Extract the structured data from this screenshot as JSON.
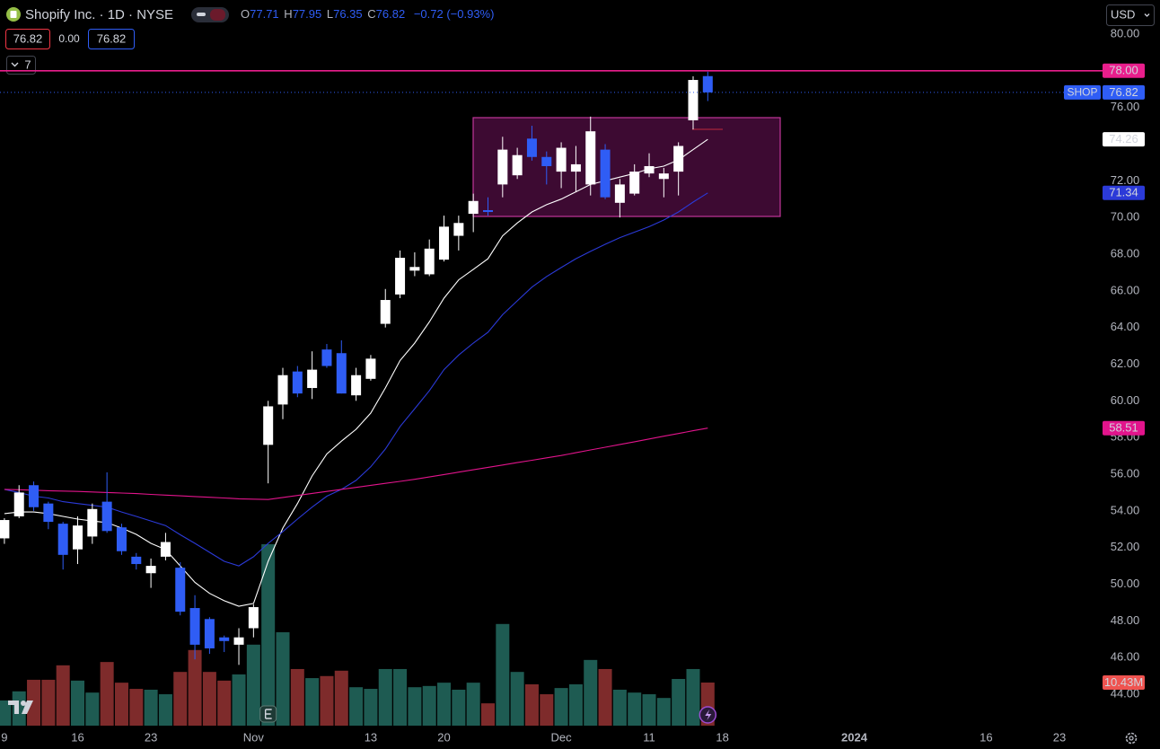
{
  "ui": {
    "title": "Shopify Inc. · 1D · NYSE",
    "ohlc_keys": [
      "O",
      "H",
      "L",
      "C"
    ],
    "change": "−0.72 (−0.93%)",
    "bid": "76.82",
    "spread": "0.00",
    "ask": "76.82",
    "indicator_count": "7",
    "currency": "USD"
  },
  "chart_data": {
    "type": "candlestick",
    "grid": false,
    "candles": {
      "name": "SHOP",
      "up_color": "#ffffff",
      "down_color": "#2f5df5",
      "open": [
        52.5,
        53.7,
        55.4,
        54.4,
        53.3,
        51.9,
        52.6,
        54.5,
        53.1,
        51.5,
        50.6,
        51.5,
        50.9,
        48.7,
        48.1,
        47.1,
        46.7,
        47.6,
        57.6,
        59.8,
        61.6,
        60.7,
        62.8,
        62.6,
        60.3,
        61.2,
        64.2,
        65.8,
        67.1,
        66.9,
        67.7,
        69.0,
        70.2,
        70.4,
        71.8,
        72.3,
        74.3,
        73.3,
        72.5,
        72.5,
        71.8,
        73.7,
        70.8,
        71.3,
        72.4,
        72.1,
        72.5,
        75.3,
        77.71
      ],
      "high": [
        53.6,
        55.4,
        55.6,
        54.5,
        53.4,
        53.7,
        54.4,
        56.1,
        53.3,
        51.7,
        51.4,
        52.8,
        51.2,
        49.4,
        48.2,
        47.2,
        47.6,
        48.9,
        60.0,
        61.8,
        61.9,
        62.7,
        63.1,
        63.3,
        61.8,
        62.5,
        66.1,
        68.2,
        68.1,
        68.8,
        70.1,
        70.1,
        71.3,
        71.1,
        74.4,
        73.8,
        75.0,
        73.6,
        74.1,
        73.9,
        75.5,
        74.0,
        72.1,
        72.9,
        73.5,
        72.7,
        74.1,
        77.7,
        77.95
      ],
      "low": [
        52.2,
        53.6,
        54.0,
        53.0,
        50.8,
        51.1,
        52.2,
        52.8,
        51.6,
        50.8,
        49.8,
        51.3,
        48.3,
        45.9,
        46.2,
        46.3,
        45.6,
        47.1,
        55.5,
        59.0,
        60.2,
        60.1,
        61.8,
        60.4,
        60.0,
        61.1,
        64.0,
        65.6,
        66.8,
        66.8,
        67.6,
        68.2,
        69.2,
        70.1,
        71.1,
        72.1,
        73.1,
        71.8,
        71.6,
        71.4,
        71.2,
        71.0,
        70.0,
        71.2,
        72.2,
        71.1,
        71.2,
        74.8,
        76.35
      ],
      "close": [
        53.5,
        55.0,
        54.2,
        53.4,
        51.6,
        53.2,
        54.1,
        52.9,
        51.8,
        51.1,
        51.0,
        52.3,
        48.5,
        46.7,
        46.5,
        46.9,
        47.1,
        48.75,
        59.7,
        61.4,
        60.4,
        61.7,
        61.9,
        60.4,
        61.4,
        62.3,
        65.5,
        67.8,
        67.3,
        68.3,
        69.5,
        69.7,
        70.9,
        70.3,
        73.7,
        73.4,
        73.3,
        72.8,
        73.8,
        72.9,
        74.7,
        71.1,
        71.8,
        72.5,
        72.8,
        72.4,
        73.9,
        77.5,
        76.82
      ]
    },
    "lines": [
      {
        "color": "#ffffff",
        "values": [
          53.85,
          53.94,
          53.94,
          53.85,
          53.7,
          53.55,
          53.45,
          53.36,
          53.06,
          52.72,
          52.23,
          51.89,
          51.0,
          50.1,
          49.5,
          49.1,
          48.8,
          48.95,
          51.25,
          53.06,
          54.4,
          55.9,
          57.1,
          57.8,
          58.45,
          59.33,
          60.7,
          62.2,
          63.15,
          64.3,
          65.6,
          66.6,
          67.17,
          67.75,
          69.0,
          69.7,
          70.3,
          70.7,
          71.0,
          71.4,
          71.8,
          72.0,
          72.2,
          72.4,
          72.65,
          72.8,
          73.14,
          73.7,
          74.26
        ]
      },
      {
        "color": "#2b3ad8",
        "values": [
          55.17,
          55.0,
          54.8,
          54.7,
          54.5,
          54.4,
          54.3,
          54.2,
          53.94,
          53.7,
          53.45,
          53.2,
          52.7,
          52.23,
          51.74,
          51.25,
          51.0,
          51.5,
          52.23,
          52.87,
          53.55,
          54.2,
          54.8,
          55.17,
          55.66,
          56.4,
          57.37,
          58.6,
          59.57,
          60.55,
          61.7,
          62.5,
          63.15,
          63.74,
          64.7,
          65.45,
          66.2,
          66.78,
          67.27,
          67.75,
          68.15,
          68.54,
          68.9,
          69.2,
          69.5,
          69.86,
          70.3,
          70.84,
          71.34
        ]
      },
      {
        "color": "#e2148c",
        "values": [
          55.17,
          55.15,
          55.13,
          55.1,
          55.08,
          55.06,
          55.03,
          55.0,
          54.97,
          54.94,
          54.9,
          54.86,
          54.82,
          54.78,
          54.74,
          54.7,
          54.66,
          54.64,
          54.62,
          54.73,
          54.84,
          54.95,
          55.06,
          55.17,
          55.28,
          55.39,
          55.5,
          55.61,
          55.72,
          55.85,
          55.98,
          56.11,
          56.24,
          56.37,
          56.5,
          56.63,
          56.76,
          56.89,
          57.02,
          57.17,
          57.32,
          57.47,
          57.62,
          57.77,
          57.92,
          58.07,
          58.22,
          58.37,
          58.51
        ]
      }
    ],
    "volume": {
      "up_color": "#1e5b52",
      "down_color": "#7e2b2b",
      "label_color": "#ef5350",
      "last_value_label": "10.43M",
      "values": [
        6.1,
        8.3,
        11.1,
        11.1,
        14.6,
        10.9,
        8.0,
        15.4,
        10.4,
        8.9,
        8.7,
        7.6,
        13.0,
        18.3,
        13.0,
        10.9,
        12.4,
        19.6,
        43.9,
        22.6,
        13.7,
        11.5,
        12.0,
        13.3,
        9.3,
        8.9,
        13.7,
        13.7,
        9.3,
        9.6,
        10.4,
        8.7,
        10.4,
        5.4,
        24.6,
        13.0,
        10.0,
        7.6,
        9.1,
        10.0,
        15.9,
        13.7,
        8.7,
        8.0,
        7.6,
        6.7,
        11.3,
        13.7,
        10.43
      ]
    },
    "hline": {
      "value": 78,
      "label": "78.00",
      "color": "#e91e8c"
    },
    "xlim": [
      -0.3,
      74.94
    ],
    "xticks": [
      {
        "value": 0,
        "label": "9"
      },
      {
        "value": 5,
        "label": "16"
      },
      {
        "value": 10,
        "label": "23"
      },
      {
        "value": 17,
        "label": "Nov"
      },
      {
        "value": 25,
        "label": "13"
      },
      {
        "value": 30,
        "label": "20"
      },
      {
        "value": 38,
        "label": "Dec"
      },
      {
        "value": 44,
        "label": "11"
      },
      {
        "value": 49,
        "label": "18"
      },
      {
        "value": 58,
        "label": "2024"
      },
      {
        "value": 67,
        "label": "16"
      },
      {
        "value": 72,
        "label": "23"
      }
    ],
    "ylim": [
      42.09,
      81.86
    ],
    "yticks": [
      {
        "value": 80,
        "label": "80.00"
      },
      {
        "value": 76,
        "label": "76.00"
      },
      {
        "value": 72,
        "label": "72.00"
      },
      {
        "value": 70,
        "label": "70.00"
      },
      {
        "value": 68,
        "label": "68.00"
      },
      {
        "value": 66,
        "label": "66.00"
      },
      {
        "value": 64,
        "label": "64.00"
      },
      {
        "value": 62,
        "label": "62.00"
      },
      {
        "value": 60,
        "label": "60.00"
      },
      {
        "value": 58,
        "label": "58.00"
      },
      {
        "value": 56,
        "label": "56.00"
      },
      {
        "value": 54,
        "label": "54.00"
      },
      {
        "value": 52,
        "label": "52.00"
      },
      {
        "value": 50,
        "label": "50.00"
      },
      {
        "value": 48,
        "label": "48.00"
      },
      {
        "value": 46,
        "label": "46.00"
      },
      {
        "value": 44,
        "label": "44.00"
      }
    ]
  }
}
